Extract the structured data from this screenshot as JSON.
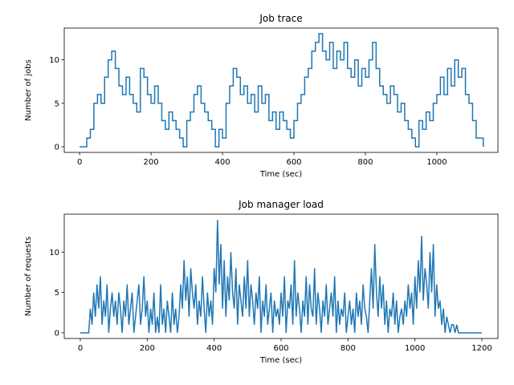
{
  "chart_data": [
    {
      "type": "line",
      "title": "Job trace",
      "xlabel": "Time (sec)",
      "ylabel": "Number of jobs",
      "step": "post",
      "color": "#1f77b4",
      "xlim": [
        -43,
        1171
      ],
      "ylim": [
        -0.65,
        13.65
      ],
      "xticks": [
        0,
        200,
        400,
        600,
        800,
        1000
      ],
      "yticks": [
        0,
        5,
        10
      ],
      "x": [
        0,
        10,
        20,
        30,
        40,
        50,
        60,
        70,
        80,
        90,
        100,
        110,
        120,
        130,
        140,
        150,
        160,
        170,
        180,
        190,
        200,
        210,
        220,
        230,
        240,
        250,
        260,
        270,
        280,
        290,
        300,
        310,
        320,
        330,
        340,
        350,
        360,
        370,
        380,
        390,
        400,
        410,
        420,
        430,
        440,
        450,
        460,
        470,
        480,
        490,
        500,
        510,
        520,
        530,
        540,
        550,
        560,
        570,
        580,
        590,
        600,
        610,
        620,
        630,
        640,
        650,
        660,
        670,
        680,
        690,
        700,
        710,
        720,
        730,
        740,
        750,
        760,
        770,
        780,
        790,
        800,
        810,
        820,
        830,
        840,
        850,
        860,
        870,
        880,
        890,
        900,
        910,
        920,
        930,
        940,
        950,
        960,
        970,
        980,
        990,
        1000,
        1010,
        1020,
        1030,
        1040,
        1050,
        1060,
        1070,
        1080,
        1090,
        1100,
        1110,
        1120,
        1130
      ],
      "values": [
        0,
        0,
        1,
        2,
        5,
        6,
        5,
        8,
        10,
        11,
        9,
        7,
        6,
        8,
        6,
        5,
        4,
        9,
        8,
        6,
        5,
        7,
        5,
        3,
        2,
        4,
        3,
        2,
        1,
        0,
        3,
        4,
        6,
        7,
        5,
        4,
        3,
        2,
        0,
        2,
        1,
        5,
        7,
        9,
        8,
        6,
        7,
        5,
        6,
        4,
        7,
        5,
        6,
        3,
        4,
        2,
        4,
        3,
        2,
        1,
        3,
        5,
        6,
        8,
        9,
        11,
        12,
        13,
        11,
        10,
        12,
        9,
        11,
        10,
        12,
        9,
        8,
        10,
        7,
        9,
        8,
        10,
        12,
        9,
        7,
        6,
        5,
        7,
        6,
        4,
        5,
        3,
        2,
        1,
        0,
        3,
        2,
        4,
        3,
        5,
        6,
        8,
        6,
        9,
        7,
        10,
        8,
        9,
        6,
        5,
        3,
        1,
        1,
        0
      ]
    },
    {
      "type": "line",
      "title": "Job manager load",
      "xlabel": "Time (sec)",
      "ylabel": "Number of requests",
      "color": "#1f77b4",
      "xlim": [
        -48,
        1248
      ],
      "ylim": [
        -0.7,
        14.7
      ],
      "xticks": [
        0,
        200,
        400,
        600,
        800,
        1000,
        1200
      ],
      "yticks": [
        0,
        5,
        10
      ],
      "x": [
        0,
        5,
        10,
        15,
        20,
        25,
        30,
        35,
        40,
        45,
        50,
        55,
        60,
        65,
        70,
        75,
        80,
        85,
        90,
        95,
        100,
        105,
        110,
        115,
        120,
        125,
        130,
        135,
        140,
        145,
        150,
        155,
        160,
        165,
        170,
        175,
        180,
        185,
        190,
        195,
        200,
        205,
        210,
        215,
        220,
        225,
        230,
        235,
        240,
        245,
        250,
        255,
        260,
        265,
        270,
        275,
        280,
        285,
        290,
        295,
        300,
        305,
        310,
        315,
        320,
        325,
        330,
        335,
        340,
        345,
        350,
        355,
        360,
        365,
        370,
        375,
        380,
        385,
        390,
        395,
        400,
        405,
        410,
        415,
        420,
        425,
        430,
        435,
        440,
        445,
        450,
        455,
        460,
        465,
        470,
        475,
        480,
        485,
        490,
        495,
        500,
        505,
        510,
        515,
        520,
        525,
        530,
        535,
        540,
        545,
        550,
        555,
        560,
        565,
        570,
        575,
        580,
        585,
        590,
        595,
        600,
        605,
        610,
        615,
        620,
        625,
        630,
        635,
        640,
        645,
        650,
        655,
        660,
        665,
        670,
        675,
        680,
        685,
        690,
        695,
        700,
        705,
        710,
        715,
        720,
        725,
        730,
        735,
        740,
        745,
        750,
        755,
        760,
        765,
        770,
        775,
        780,
        785,
        790,
        795,
        800,
        805,
        810,
        815,
        820,
        825,
        830,
        835,
        840,
        845,
        850,
        855,
        860,
        865,
        870,
        875,
        880,
        885,
        890,
        895,
        900,
        905,
        910,
        915,
        920,
        925,
        930,
        935,
        940,
        945,
        950,
        955,
        960,
        965,
        970,
        975,
        980,
        985,
        990,
        995,
        1000,
        1005,
        1010,
        1015,
        1020,
        1025,
        1030,
        1035,
        1040,
        1045,
        1050,
        1055,
        1060,
        1065,
        1070,
        1075,
        1080,
        1085,
        1090,
        1095,
        1100,
        1105,
        1110,
        1115,
        1120,
        1125,
        1130,
        1135,
        1140,
        1145,
        1150,
        1155,
        1160,
        1165,
        1170,
        1175,
        1180,
        1185,
        1190,
        1195,
        1200
      ],
      "values": [
        0,
        0,
        0,
        0,
        0,
        0,
        3,
        1,
        5,
        2,
        6,
        3,
        7,
        1,
        4,
        2,
        6,
        0,
        3,
        5,
        2,
        4,
        1,
        5,
        3,
        0,
        4,
        2,
        6,
        1,
        3,
        5,
        0,
        2,
        4,
        6,
        1,
        3,
        7,
        2,
        4,
        0,
        3,
        1,
        5,
        0,
        2,
        0,
        6,
        1,
        3,
        0,
        4,
        2,
        0,
        5,
        1,
        3,
        0,
        2,
        6,
        3,
        9,
        4,
        7,
        2,
        8,
        5,
        3,
        6,
        1,
        4,
        2,
        7,
        3,
        0,
        5,
        2,
        4,
        1,
        8,
        5,
        14,
        6,
        11,
        3,
        9,
        2,
        7,
        4,
        10,
        5,
        3,
        8,
        1,
        6,
        4,
        2,
        7,
        3,
        9,
        2,
        6,
        4,
        1,
        5,
        3,
        7,
        0,
        4,
        2,
        6,
        1,
        3,
        5,
        0,
        4,
        2,
        3,
        1,
        5,
        2,
        7,
        0,
        4,
        3,
        6,
        1,
        9,
        2,
        5,
        3,
        0,
        4,
        2,
        7,
        1,
        6,
        3,
        2,
        8,
        1,
        5,
        3,
        0,
        4,
        2,
        6,
        1,
        3,
        5,
        2,
        7,
        0,
        4,
        1,
        3,
        2,
        5,
        0,
        2,
        4,
        1,
        3,
        0,
        5,
        2,
        4,
        1,
        6,
        3,
        2,
        0,
        4,
        8,
        3,
        11,
        5,
        2,
        7,
        3,
        6,
        1,
        4,
        0,
        3,
        2,
        5,
        1,
        4,
        0,
        2,
        3,
        1,
        4,
        2,
        6,
        3,
        5,
        1,
        7,
        3,
        9,
        5,
        12,
        4,
        8,
        6,
        3,
        10,
        5,
        11,
        2,
        6,
        3,
        4,
        1,
        3,
        0,
        2,
        1,
        0,
        1,
        1,
        0,
        1,
        0,
        0,
        0,
        0,
        0,
        0,
        0,
        0,
        0,
        0,
        0,
        0,
        0,
        0,
        0
      ]
    }
  ]
}
